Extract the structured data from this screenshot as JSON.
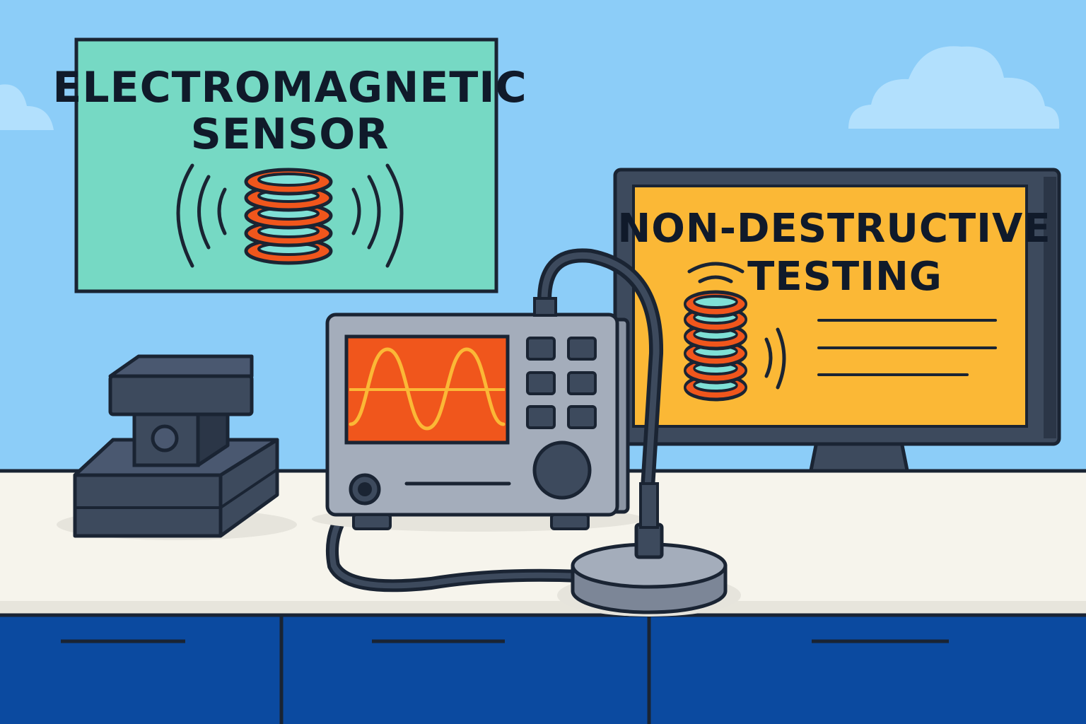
{
  "poster": {
    "line1": "ELECTROMAGNETIC",
    "line2": "SENSOR",
    "icon": "coil-with-waves-icon"
  },
  "monitor": {
    "line1": "NON-DESTRUCTIVE",
    "line2": "TESTING",
    "icon": "coil-with-waves-icon"
  },
  "instrument": {
    "screen_icon": "sine-wave-icon",
    "button_count": 6
  },
  "colors": {
    "sky": "#8ccdf8",
    "poster_bg": "#76d9c4",
    "monitor_screen": "#fbb836",
    "coil_orange": "#f0561c",
    "outline": "#1a2433",
    "counter_top": "#f6f4ec",
    "cabinet_blue": "#0b4aa0",
    "device_gray": "#a4adbb",
    "dark_slate": "#3d4a5d"
  }
}
